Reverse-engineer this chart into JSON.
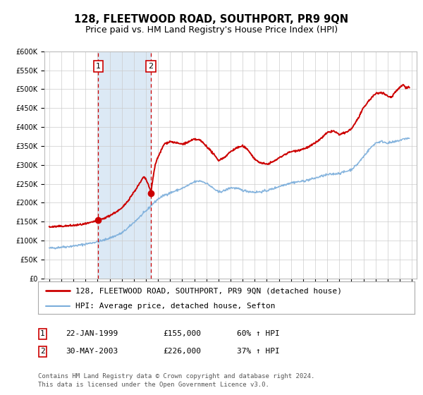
{
  "title": "128, FLEETWOOD ROAD, SOUTHPORT, PR9 9QN",
  "subtitle": "Price paid vs. HM Land Registry's House Price Index (HPI)",
  "ylim": [
    0,
    600000
  ],
  "yticks": [
    0,
    50000,
    100000,
    150000,
    200000,
    250000,
    300000,
    350000,
    400000,
    450000,
    500000,
    550000,
    600000
  ],
  "xlim_start": 1994.6,
  "xlim_end": 2025.4,
  "background_color": "#ffffff",
  "plot_bg_color": "#ffffff",
  "grid_color": "#cccccc",
  "sale1_date": 1999.056,
  "sale1_price": 155000,
  "sale1_label": "1",
  "sale2_date": 2003.413,
  "sale2_price": 226000,
  "sale2_label": "2",
  "shade_color": "#dce9f5",
  "vline_color": "#cc0000",
  "house_line_color": "#cc0000",
  "hpi_line_color": "#7aaddb",
  "legend_label_house": "128, FLEETWOOD ROAD, SOUTHPORT, PR9 9QN (detached house)",
  "legend_label_hpi": "HPI: Average price, detached house, Sefton",
  "table_row1": [
    "1",
    "22-JAN-1999",
    "£155,000",
    "60% ↑ HPI"
  ],
  "table_row2": [
    "2",
    "30-MAY-2003",
    "£226,000",
    "37% ↑ HPI"
  ],
  "footer_text": "Contains HM Land Registry data © Crown copyright and database right 2024.\nThis data is licensed under the Open Government Licence v3.0.",
  "title_fontsize": 10.5,
  "subtitle_fontsize": 9,
  "tick_fontsize": 7,
  "legend_fontsize": 8,
  "table_fontsize": 8,
  "footer_fontsize": 6.5
}
